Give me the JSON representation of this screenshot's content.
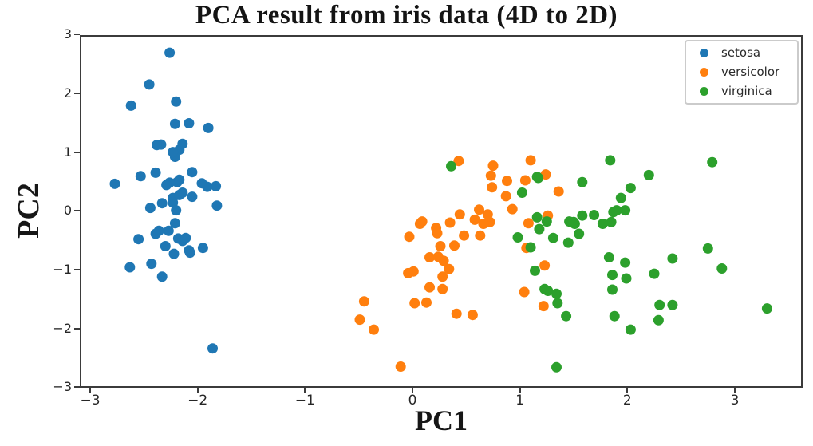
{
  "title": "PCA result from iris data (4D to 2D)",
  "axes": {
    "xlabel": "PC1",
    "ylabel": "PC2",
    "x_tick_labels": [
      "−3",
      "−2",
      "−1",
      "0",
      "1",
      "2",
      "3"
    ],
    "y_tick_labels": [
      "3",
      "2",
      "1",
      "0",
      "−1",
      "−2",
      "−3"
    ]
  },
  "legend": {
    "position": "upper right",
    "entries": [
      {
        "label": "setosa",
        "color": "#1f77b4"
      },
      {
        "label": "versicolor",
        "color": "#ff7f0e"
      },
      {
        "label": "virginica",
        "color": "#2ca02c"
      }
    ]
  },
  "chart_data": {
    "type": "scatter",
    "title": "PCA result from iris data (4D to 2D)",
    "xlabel": "PC1",
    "ylabel": "PC2",
    "xlim": [
      -3.1,
      3.63
    ],
    "ylim": [
      -3.01,
      3.0
    ],
    "x_ticks": [
      -3,
      -2,
      -1,
      0,
      1,
      2,
      3
    ],
    "y_ticks": [
      3,
      2,
      1,
      0,
      -1,
      -2,
      -3
    ],
    "grid": false,
    "legend_position": "upper right",
    "marker_diameter_px": 13,
    "series": [
      {
        "name": "setosa",
        "color": "#1f77b4",
        "points": [
          [
            -2.26,
            0.48
          ],
          [
            -2.08,
            -0.67
          ],
          [
            -2.36,
            -0.34
          ],
          [
            -2.3,
            -0.6
          ],
          [
            -2.39,
            0.65
          ],
          [
            -2.08,
            1.49
          ],
          [
            -2.44,
            0.05
          ],
          [
            -2.23,
            0.22
          ],
          [
            -2.33,
            -1.12
          ],
          [
            -2.18,
            -0.47
          ],
          [
            -2.17,
            1.04
          ],
          [
            -2.33,
            0.13
          ],
          [
            -2.22,
            -0.73
          ],
          [
            -2.63,
            -0.96
          ],
          [
            -2.2,
            1.86
          ],
          [
            -2.26,
            2.69
          ],
          [
            -2.21,
            1.48
          ],
          [
            -2.19,
            0.49
          ],
          [
            -1.9,
            1.41
          ],
          [
            -2.34,
            1.13
          ],
          [
            -1.91,
            0.41
          ],
          [
            -2.21,
            0.92
          ],
          [
            -2.77,
            0.46
          ],
          [
            -1.82,
            0.09
          ],
          [
            -2.23,
            0.14
          ],
          [
            -1.95,
            -0.63
          ],
          [
            -2.05,
            0.24
          ],
          [
            -2.17,
            0.53
          ],
          [
            -2.14,
            0.31
          ],
          [
            -2.27,
            -0.34
          ],
          [
            -2.14,
            -0.51
          ],
          [
            -1.83,
            0.42
          ],
          [
            -2.62,
            1.79
          ],
          [
            -2.45,
            2.15
          ],
          [
            -2.11,
            -0.46
          ],
          [
            -2.21,
            -0.21
          ],
          [
            -2.05,
            0.66
          ],
          [
            -2.53,
            0.59
          ],
          [
            -2.43,
            -0.9
          ],
          [
            -2.17,
            0.27
          ],
          [
            -2.29,
            0.44
          ],
          [
            -1.86,
            -2.34
          ],
          [
            -2.55,
            -0.48
          ],
          [
            -1.96,
            0.47
          ],
          [
            -2.14,
            1.14
          ],
          [
            -2.07,
            -0.71
          ],
          [
            -2.38,
            1.12
          ],
          [
            -2.39,
            -0.39
          ],
          [
            -2.23,
            1.0
          ],
          [
            -2.2,
            0.01
          ]
        ]
      },
      {
        "name": "versicolor",
        "color": "#ff7f0e",
        "points": [
          [
            1.1,
            0.86
          ],
          [
            0.73,
            0.6
          ],
          [
            1.24,
            0.62
          ],
          [
            0.41,
            -1.75
          ],
          [
            1.08,
            -0.21
          ],
          [
            0.39,
            -0.59
          ],
          [
            0.75,
            0.77
          ],
          [
            -0.49,
            -1.85
          ],
          [
            0.93,
            0.03
          ],
          [
            0.01,
            -1.03
          ],
          [
            -0.11,
            -2.65
          ],
          [
            0.44,
            -0.06
          ],
          [
            0.56,
            -1.77
          ],
          [
            0.72,
            -0.19
          ],
          [
            -0.03,
            -0.44
          ],
          [
            0.88,
            0.51
          ],
          [
            0.35,
            -0.2
          ],
          [
            0.16,
            -0.79
          ],
          [
            1.22,
            -1.62
          ],
          [
            0.16,
            -1.3
          ],
          [
            0.74,
            0.4
          ],
          [
            0.48,
            -0.42
          ],
          [
            1.23,
            -0.93
          ],
          [
            0.63,
            -0.42
          ],
          [
            0.7,
            -0.06
          ],
          [
            0.87,
            0.25
          ],
          [
            1.26,
            -0.08
          ],
          [
            1.36,
            0.33
          ],
          [
            0.66,
            -0.22
          ],
          [
            -0.04,
            -1.06
          ],
          [
            0.13,
            -1.56
          ],
          [
            0.02,
            -1.57
          ],
          [
            0.24,
            -0.78
          ],
          [
            1.06,
            -0.63
          ],
          [
            0.22,
            -0.29
          ],
          [
            0.43,
            0.85
          ],
          [
            1.05,
            0.52
          ],
          [
            1.04,
            -1.38
          ],
          [
            0.07,
            -0.22
          ],
          [
            0.28,
            -1.33
          ],
          [
            0.28,
            -1.12
          ],
          [
            0.62,
            0.02
          ],
          [
            0.34,
            -0.99
          ],
          [
            -0.36,
            -2.02
          ],
          [
            0.29,
            -0.85
          ],
          [
            0.09,
            -0.18
          ],
          [
            0.23,
            -0.38
          ],
          [
            0.58,
            -0.15
          ],
          [
            -0.45,
            -1.54
          ],
          [
            0.26,
            -0.6
          ]
        ]
      },
      {
        "name": "virginica",
        "color": "#2ca02c",
        "points": [
          [
            0.36,
            0.76
          ],
          [
            1.16,
            0.58
          ],
          [
            1.17,
            0.56
          ],
          [
            1.02,
            0.31
          ],
          [
            1.84,
            0.86
          ],
          [
            2.2,
            0.61
          ],
          [
            2.03,
            0.39
          ],
          [
            1.94,
            0.22
          ],
          [
            1.9,
            0.01
          ],
          [
            1.98,
            0.01
          ],
          [
            1.58,
            0.49
          ],
          [
            1.69,
            -0.07
          ],
          [
            1.58,
            -0.08
          ],
          [
            1.77,
            -0.22
          ],
          [
            1.85,
            -0.19
          ],
          [
            1.46,
            -0.18
          ],
          [
            1.51,
            -0.22
          ],
          [
            1.5,
            -0.19
          ],
          [
            1.16,
            -0.11
          ],
          [
            1.25,
            -0.18
          ],
          [
            1.18,
            -0.31
          ],
          [
            1.31,
            -0.46
          ],
          [
            1.55,
            -0.39
          ],
          [
            0.98,
            -0.45
          ],
          [
            1.45,
            -0.54
          ],
          [
            1.1,
            -0.62
          ],
          [
            1.87,
            -0.02
          ],
          [
            1.83,
            -0.79
          ],
          [
            1.98,
            -0.88
          ],
          [
            1.14,
            -1.02
          ],
          [
            1.86,
            -1.09
          ],
          [
            1.99,
            -1.15
          ],
          [
            2.25,
            -1.07
          ],
          [
            1.23,
            -1.33
          ],
          [
            1.26,
            -1.36
          ],
          [
            1.34,
            -1.41
          ],
          [
            1.35,
            -1.57
          ],
          [
            1.43,
            -1.79
          ],
          [
            1.86,
            -1.34
          ],
          [
            1.88,
            -1.79
          ],
          [
            2.03,
            -2.02
          ],
          [
            2.29,
            -1.86
          ],
          [
            2.3,
            -1.6
          ],
          [
            2.42,
            -1.6
          ],
          [
            3.3,
            -1.66
          ],
          [
            1.34,
            -2.66
          ],
          [
            2.79,
            0.83
          ],
          [
            2.75,
            -0.64
          ],
          [
            2.42,
            -0.81
          ],
          [
            2.88,
            -0.98
          ]
        ]
      }
    ]
  }
}
